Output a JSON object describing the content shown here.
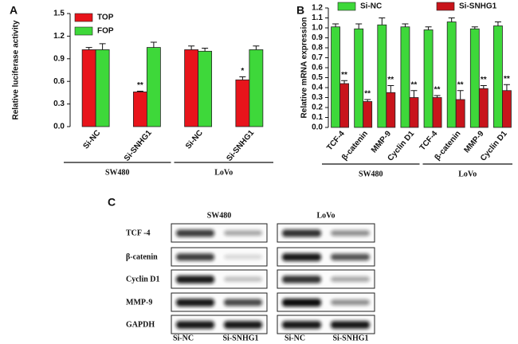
{
  "chart_data": [
    {
      "type": "bar",
      "panel": "A",
      "ylabel": "Relative luciferase activity",
      "categories": [
        "Si-NC",
        "Si-SNHG1",
        "Si-NC",
        "Si-SNHG1"
      ],
      "groups": [
        "SW480",
        "LoVo"
      ],
      "series": [
        {
          "name": "TOP",
          "color": "#e8141b",
          "values": [
            1.02,
            0.46,
            1.02,
            0.62
          ],
          "errors": [
            0.03,
            0.01,
            0.05,
            0.04
          ],
          "annotations": [
            null,
            "**",
            null,
            "*"
          ]
        },
        {
          "name": "FOP",
          "color": "#3ed83a",
          "values": [
            1.02,
            1.05,
            1.0,
            1.02
          ],
          "errors": [
            0.08,
            0.07,
            0.04,
            0.05
          ],
          "annotations": [
            null,
            null,
            null,
            null
          ]
        }
      ],
      "ylim": [
        0,
        1.5
      ],
      "yticks": [
        {
          "value": 0,
          "label": "0.0"
        },
        {
          "value": 0.3,
          "label": "0.3"
        },
        {
          "value": 0.6,
          "label": "0.6"
        },
        {
          "value": 0.9,
          "label": "0.9"
        },
        {
          "value": 1.2,
          "label": "1.2"
        },
        {
          "value": 1.5,
          "label": "1.5"
        }
      ],
      "legend": "upper left"
    },
    {
      "type": "bar",
      "panel": "B",
      "ylabel": "Relative mRNA expression",
      "categories": [
        "TCF-4",
        "β-catenin",
        "MMP-9",
        "Cyclin D1",
        "TCF-4",
        "β-catenin",
        "MMP-9",
        "Cyclin D1"
      ],
      "groups": [
        "SW480",
        "LoVo"
      ],
      "series": [
        {
          "name": "Si-NC",
          "color": "#3ed83a",
          "values": [
            1.01,
            0.99,
            1.03,
            1.01,
            0.98,
            1.06,
            0.99,
            1.02
          ],
          "errors": [
            0.03,
            0.05,
            0.07,
            0.03,
            0.03,
            0.04,
            0.02,
            0.04
          ],
          "annotations": [
            null,
            null,
            null,
            null,
            null,
            null,
            null,
            null
          ]
        },
        {
          "name": "Si-SNHG1",
          "color": "#c8141b",
          "values": [
            0.44,
            0.26,
            0.35,
            0.3,
            0.3,
            0.28,
            0.39,
            0.37
          ],
          "errors": [
            0.03,
            0.02,
            0.07,
            0.07,
            0.02,
            0.09,
            0.03,
            0.06
          ],
          "annotations": [
            "**",
            "**",
            "**",
            "**",
            "**",
            "**",
            "**",
            "**"
          ]
        }
      ],
      "ylim": [
        0,
        1.2
      ],
      "yticks": [
        {
          "value": 0,
          "label": "0.0"
        },
        {
          "value": 0.1,
          "label": "0.1"
        },
        {
          "value": 0.2,
          "label": "0.2"
        },
        {
          "value": 0.3,
          "label": "0.3"
        },
        {
          "value": 0.4,
          "label": "0.4"
        },
        {
          "value": 0.5,
          "label": "0.5"
        },
        {
          "value": 0.6,
          "label": "0.6"
        },
        {
          "value": 0.7,
          "label": "0.7"
        },
        {
          "value": 0.8,
          "label": "0.8"
        },
        {
          "value": 0.9,
          "label": "0.9"
        },
        {
          "value": 1.0,
          "label": "1.0"
        },
        {
          "value": 1.1,
          "label": "1.1"
        },
        {
          "value": 1.2,
          "label": "1.2"
        }
      ],
      "legend": "upper center"
    }
  ],
  "blot": {
    "panel": "C",
    "columns": [
      "SW480",
      "LoVo"
    ],
    "rows": [
      "TCF -4",
      "β-catenin",
      "Cyclin D1",
      "MMP-9",
      "GAPDH"
    ],
    "lanes": [
      "Si-NC",
      "Si-SNHG1",
      "Si-NC",
      "Si-SNHG1"
    ]
  }
}
